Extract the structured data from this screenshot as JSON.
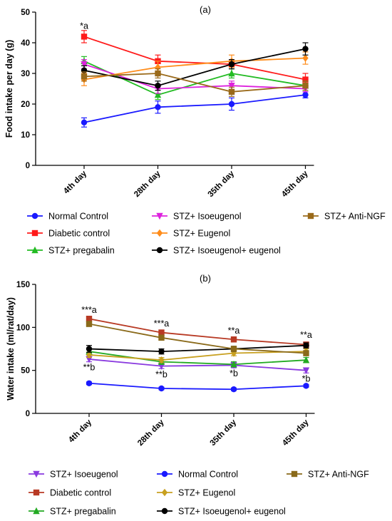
{
  "chart_data": [
    {
      "type": "line",
      "panel_label": "(a)",
      "ylabel": "Food intake per day (g)",
      "xlabel": "",
      "categories": [
        "4th day",
        "28th day",
        "35th day",
        "45th day"
      ],
      "ylim": [
        0,
        50
      ],
      "yticks": [
        0,
        10,
        20,
        30,
        40,
        50
      ],
      "grid": false,
      "legend_position": "bottom",
      "series": [
        {
          "name": "Normal Control",
          "color": "#1a1aff",
          "marker": "circle",
          "values": [
            14,
            19,
            20,
            23
          ],
          "err": [
            1.5,
            2,
            2,
            1
          ]
        },
        {
          "name": "Diabetic control",
          "color": "#ff1a1a",
          "marker": "square",
          "values": [
            42,
            34,
            33,
            28
          ],
          "err": [
            2,
            2,
            1.5,
            2
          ]
        },
        {
          "name": "STZ+ pregabalin",
          "color": "#22bb22",
          "marker": "triangle-up",
          "values": [
            34,
            23,
            30,
            26
          ],
          "err": [
            1.5,
            1.5,
            1.5,
            1.5
          ]
        },
        {
          "name": "STZ+ Isoeugenol",
          "color": "#dd22dd",
          "marker": "triangle-down",
          "values": [
            33,
            25,
            26,
            25
          ],
          "err": [
            1.5,
            1.5,
            1.5,
            1
          ]
        },
        {
          "name": "STZ+ Eugenol",
          "color": "#ff8c1a",
          "marker": "diamond",
          "values": [
            28,
            32,
            34,
            35
          ],
          "err": [
            2,
            2,
            2,
            2
          ]
        },
        {
          "name": "STZ+ Isoeugenol+ eugenol",
          "color": "#000000",
          "marker": "circle",
          "values": [
            31,
            26,
            33,
            38
          ],
          "err": [
            1.5,
            1.5,
            1.5,
            2
          ]
        },
        {
          "name": "STZ+ Anti-NGF",
          "color": "#9a6a1a",
          "marker": "square",
          "values": [
            29,
            30,
            24,
            26
          ],
          "err": [
            1.5,
            1.5,
            1.5,
            1.5
          ]
        }
      ],
      "annotations": [
        {
          "text": "*a",
          "category": "4th day",
          "y": 44.5
        }
      ]
    },
    {
      "type": "line",
      "panel_label": "(b)",
      "ylabel": "Water intake (ml/rat/day)",
      "xlabel": "",
      "categories": [
        "4th day",
        "28th day",
        "35th day",
        "45th day"
      ],
      "ylim": [
        0,
        150
      ],
      "yticks": [
        0,
        50,
        100,
        150
      ],
      "grid": false,
      "legend_position": "bottom",
      "series": [
        {
          "name": "STZ+ Isoeugenol",
          "color": "#8a3adf",
          "marker": "triangle-down",
          "values": [
            63,
            55,
            56,
            50
          ],
          "err": [
            3,
            3,
            3,
            3
          ]
        },
        {
          "name": "Diabetic control",
          "color": "#b83a24",
          "marker": "square",
          "values": [
            110,
            94,
            86,
            80
          ],
          "err": [
            3,
            3,
            3,
            3
          ]
        },
        {
          "name": "STZ+ pregabalin",
          "color": "#22aa22",
          "marker": "triangle-up",
          "values": [
            72,
            60,
            57,
            62
          ],
          "err": [
            3,
            3,
            3,
            3
          ]
        },
        {
          "name": "Normal Control",
          "color": "#1a1aff",
          "marker": "circle",
          "values": [
            35,
            29,
            28,
            32
          ],
          "err": [
            1.5,
            1.5,
            1.5,
            1.5
          ]
        },
        {
          "name": "STZ+ Eugenol",
          "color": "#c8a020",
          "marker": "diamond",
          "values": [
            68,
            62,
            70,
            72
          ],
          "err": [
            3,
            3,
            3,
            3
          ]
        },
        {
          "name": "STZ+ Isoeugenol+ eugenol",
          "color": "#000000",
          "marker": "circle",
          "values": [
            75,
            72,
            75,
            79
          ],
          "err": [
            4,
            3,
            3,
            3
          ]
        },
        {
          "name": "STZ+ Anti-NGF",
          "color": "#8a6a1a",
          "marker": "square",
          "values": [
            104,
            88,
            75,
            70
          ],
          "err": [
            3,
            3,
            3,
            3
          ]
        }
      ],
      "annotations": [
        {
          "text": "***a",
          "category": "4th day",
          "y": 117
        },
        {
          "text": "**b",
          "category": "4th day",
          "y": 50
        },
        {
          "text": "***a",
          "category": "28th day",
          "y": 101
        },
        {
          "text": "**b",
          "category": "28th day",
          "y": 42
        },
        {
          "text": "**a",
          "category": "35th day",
          "y": 93
        },
        {
          "text": "*b",
          "category": "35th day",
          "y": 43
        },
        {
          "text": "**a",
          "category": "45th day",
          "y": 88
        },
        {
          "text": "*b",
          "category": "45th day",
          "y": 37
        }
      ]
    }
  ]
}
